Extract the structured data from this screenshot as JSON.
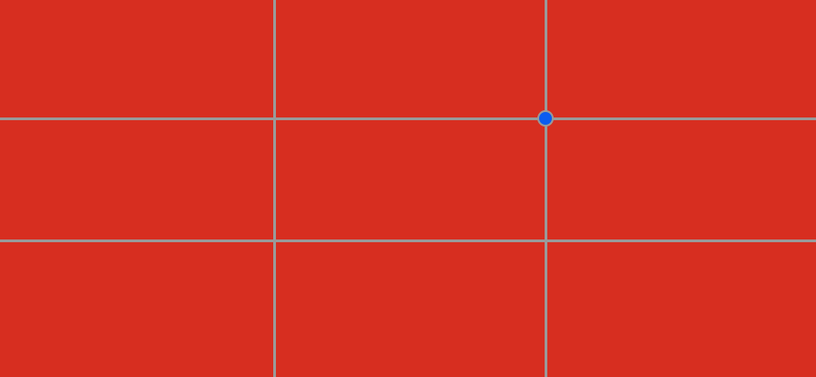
{
  "viewfinder": {
    "background_color": "#d72e20",
    "grid": {
      "type": "rule-of-thirds",
      "line_color": "#9a9a9a",
      "columns": 3,
      "rows": 3
    },
    "focus_point": {
      "icon": "focus-point-icon",
      "color": "#0a5cf0",
      "border_color": "#9a9a9a"
    }
  }
}
